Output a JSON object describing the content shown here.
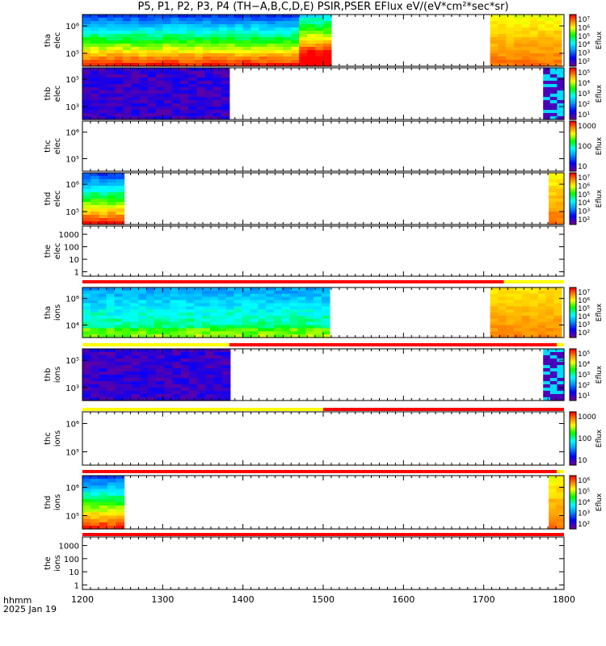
{
  "title": "P5, P1, P2, P3, P4 (TH−A,B,C,D,E) PSIR,PSER EFlux eV/(eV*cm²*sec*sr)",
  "footer": {
    "line1": "hhmm",
    "line2": "2025 Jan 19"
  },
  "chart_data": {
    "type": "heatmap",
    "x_ticks": [
      "1200",
      "1300",
      "1400",
      "1500",
      "1600",
      "1700",
      "1800"
    ],
    "x_values": [
      1200,
      1300,
      1400,
      1500,
      1600,
      1700,
      1800
    ],
    "xlim": [
      1200,
      1800
    ],
    "panels": [
      {
        "ylabel": [
          "tha",
          "elec"
        ],
        "yticks": [
          "10⁵",
          "10⁶"
        ],
        "spectrogram": true,
        "data_ranges": [
          [
            1200,
            1510
          ],
          [
            1708,
            1797
          ]
        ],
        "colorbar": {
          "label": "Eflux",
          "ticks": [
            "10²",
            "10³",
            "10⁴",
            "10⁵",
            "10⁶",
            "10⁷"
          ]
        }
      },
      {
        "ylabel": [
          "thb",
          "elec"
        ],
        "yticks": [
          "10³",
          "10⁵"
        ],
        "spectrogram": true,
        "data_ranges": [
          [
            1200,
            1383
          ],
          [
            1774,
            1800
          ]
        ],
        "colorbar": {
          "label": "Eflux",
          "ticks": [
            "10¹",
            "10²",
            "10³",
            "10⁴",
            "10⁵"
          ]
        }
      },
      {
        "ylabel": [
          "thc",
          "elec"
        ],
        "yticks": [
          "10⁵",
          "10⁶"
        ],
        "spectrogram": false,
        "data_ranges": [],
        "colorbar": {
          "label": "Eflux",
          "ticks": [
            "10",
            "100",
            "1000"
          ]
        }
      },
      {
        "ylabel": [
          "thd",
          "elec"
        ],
        "yticks": [
          "10⁵",
          "10⁶"
        ],
        "spectrogram": true,
        "data_ranges": [
          [
            1200,
            1252
          ],
          [
            1781,
            1800
          ]
        ],
        "colorbar": {
          "label": "Eflux",
          "ticks": [
            "10²",
            "10³",
            "10⁴",
            "10⁵",
            "10⁶",
            "10⁷"
          ]
        }
      },
      {
        "ylabel": [
          "the",
          "elec"
        ],
        "yticks": [
          "1",
          "10",
          "100",
          "1000"
        ],
        "spectrogram": false,
        "data_ranges": [],
        "colorbar": null
      },
      {
        "ylabel": [
          "tha",
          "ions"
        ],
        "yticks": [
          "10⁴",
          "10⁶"
        ],
        "spectrogram": true,
        "data_ranges": [
          [
            1200,
            1508
          ],
          [
            1708,
            1797
          ]
        ],
        "colorbar": {
          "label": "Eflux",
          "ticks": [
            "10²",
            "10³",
            "10⁴",
            "10⁵",
            "10⁶",
            "10⁷"
          ]
        }
      },
      {
        "ylabel": [
          "thb",
          "ions"
        ],
        "yticks": [
          "10³",
          "10⁵"
        ],
        "spectrogram": true,
        "data_ranges": [
          [
            1200,
            1384
          ],
          [
            1774,
            1800
          ]
        ],
        "colorbar": {
          "label": "Eflux",
          "ticks": [
            "10¹",
            "10²",
            "10³",
            "10⁴",
            "10⁵"
          ]
        }
      },
      {
        "ylabel": [
          "thc",
          "ions"
        ],
        "yticks": [
          "10⁵",
          "10⁶"
        ],
        "spectrogram": false,
        "data_ranges": [],
        "colorbar": {
          "label": "Eflux",
          "ticks": [
            "10",
            "100",
            "1000"
          ]
        }
      },
      {
        "ylabel": [
          "thd",
          "ions"
        ],
        "yticks": [
          "10⁵",
          "10⁶"
        ],
        "spectrogram": true,
        "data_ranges": [
          [
            1200,
            1252
          ],
          [
            1781,
            1800
          ]
        ],
        "colorbar": {
          "label": "Eflux",
          "ticks": [
            "10²",
            "10³",
            "10⁴",
            "10⁵",
            "10⁶"
          ]
        }
      },
      {
        "ylabel": [
          "the",
          "ions"
        ],
        "yticks": [
          "1",
          "10",
          "100",
          "1000"
        ],
        "spectrogram": false,
        "data_ranges": [],
        "colorbar": null
      }
    ],
    "mode_bars": [
      {
        "segments": [
          {
            "from": 1200,
            "to": 1725,
            "color": "#ff0000"
          },
          {
            "from": 1725,
            "to": 1800,
            "color": "#ffff00"
          }
        ]
      },
      {
        "segments": [
          {
            "from": 1200,
            "to": 1383,
            "color": "#ffff00"
          },
          {
            "from": 1383,
            "to": 1791,
            "color": "#ff0000"
          },
          {
            "from": 1791,
            "to": 1800,
            "color": "#ffff00"
          }
        ]
      },
      {
        "segments": [
          {
            "from": 1200,
            "to": 1500,
            "color": "#ffff00"
          },
          {
            "from": 1500,
            "to": 1800,
            "color": "#ff0000"
          }
        ]
      },
      {
        "segments": [
          {
            "from": 1200,
            "to": 1791,
            "color": "#ff0000"
          },
          {
            "from": 1791,
            "to": 1800,
            "color": "#ffff00"
          }
        ]
      },
      {
        "segments": [
          {
            "from": 1200,
            "to": 1800,
            "color": "#ff0000"
          }
        ]
      }
    ]
  }
}
